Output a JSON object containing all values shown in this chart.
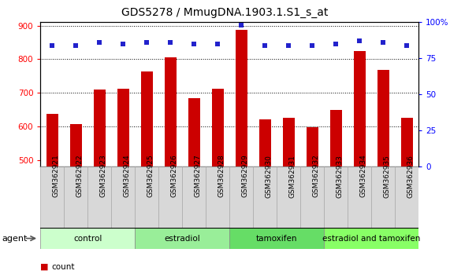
{
  "title": "GDS5278 / MmugDNA.1903.1.S1_s_at",
  "categories": [
    "GSM362921",
    "GSM362922",
    "GSM362923",
    "GSM362924",
    "GSM362925",
    "GSM362926",
    "GSM362927",
    "GSM362928",
    "GSM362929",
    "GSM362930",
    "GSM362931",
    "GSM362932",
    "GSM362933",
    "GSM362934",
    "GSM362935",
    "GSM362936"
  ],
  "bar_values": [
    638,
    607,
    710,
    712,
    763,
    806,
    683,
    712,
    888,
    622,
    626,
    598,
    648,
    824,
    769,
    625
  ],
  "percentile_values": [
    84,
    84,
    86,
    85,
    86,
    86,
    85,
    85,
    98,
    84,
    84,
    84,
    85,
    87,
    86,
    84
  ],
  "bar_color": "#cc0000",
  "dot_color": "#2222cc",
  "ylim_left": [
    480,
    910
  ],
  "ylim_right": [
    0,
    100
  ],
  "yticks_left": [
    500,
    600,
    700,
    800,
    900
  ],
  "yticks_right": [
    0,
    25,
    50,
    75,
    100
  ],
  "grid_values": [
    600,
    700,
    800
  ],
  "group_labels": [
    "control",
    "estradiol",
    "tamoxifen",
    "estradiol and tamoxifen"
  ],
  "group_starts": [
    0,
    4,
    8,
    12
  ],
  "group_ends": [
    4,
    8,
    12,
    16
  ],
  "group_colors": [
    "#ccffcc",
    "#99ee99",
    "#66dd66",
    "#88ff66"
  ],
  "bar_width": 0.5,
  "title_fontsize": 10,
  "tick_fontsize": 7,
  "label_box_color": "#d8d8d8",
  "right_axis_label": "100%"
}
